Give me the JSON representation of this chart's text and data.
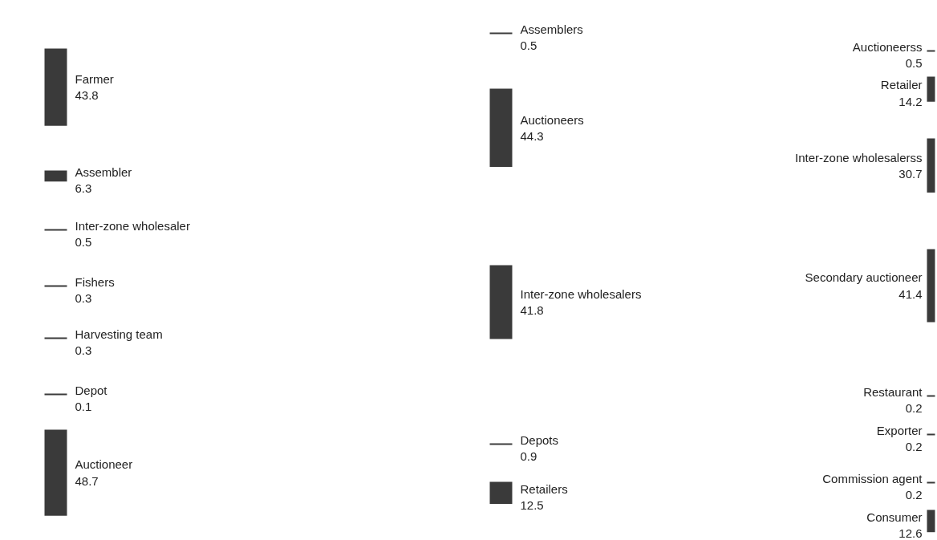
{
  "chart_data": {
    "type": "other",
    "data_labels": true,
    "color": "#3a3a3a",
    "categories": [
      "Farmer",
      "Assembler",
      "Inter-zone wholesaler",
      "Fishers",
      "Harvesting team",
      "Depot",
      "Auctioneer",
      "Assemblers",
      "Auctioneers",
      "Inter-zone wholesalers",
      "Depots",
      "Retailers",
      "Auctioneerss",
      "Retailer",
      "Inter-zone wholesalerss",
      "Secondary auctioneer",
      "Restaurant",
      "Exporter",
      "Commission agent",
      "Consumer"
    ],
    "values": [
      43.8,
      6.3,
      0.5,
      0.3,
      0.3,
      0.1,
      48.7,
      0.5,
      44.3,
      41.8,
      0.9,
      12.5,
      0.5,
      14.2,
      30.7,
      41.4,
      0.2,
      0.2,
      0.2,
      12.6
    ]
  }
}
